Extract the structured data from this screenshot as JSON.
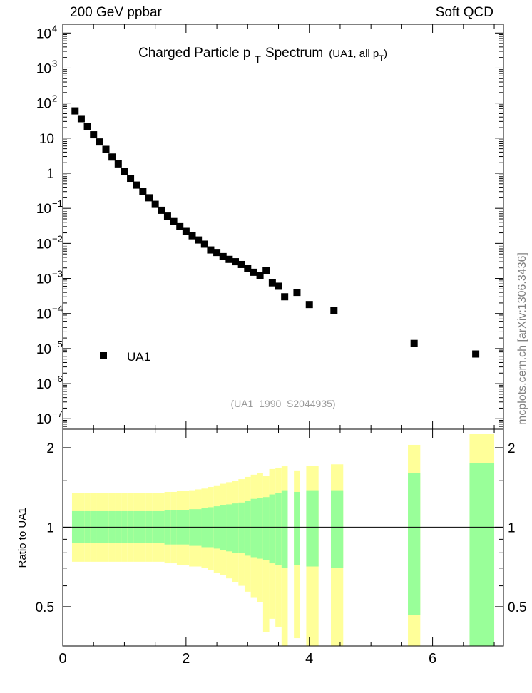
{
  "header": {
    "left": "200 GeV ppbar",
    "right": "Soft QCD",
    "side_credit": "mcplots.cern.ch [arXiv:1306.3436]"
  },
  "chart_data": [
    {
      "type": "scatter",
      "panel": "main",
      "title": "Charged Particle p",
      "title_sub": "T",
      "title_after": "Spectrum",
      "title_note": "(UA1, all p",
      "title_note_sub": "T",
      "title_note_close": ")",
      "analysis_id": "(UA1_1990_S2044935)",
      "yscale": "log",
      "xlim": [
        0,
        7.15
      ],
      "ylim_log10": [
        -7.3,
        4.25
      ],
      "yticks": [
        {
          "exp": 4,
          "label": "10",
          "sup": "4"
        },
        {
          "exp": 3,
          "label": "10",
          "sup": "3"
        },
        {
          "exp": 2,
          "label": "10",
          "sup": "2"
        },
        {
          "exp": 1,
          "label": "10",
          "sup": ""
        },
        {
          "exp": 0,
          "label": "1",
          "sup": ""
        },
        {
          "exp": -1,
          "label": "10",
          "sup": "−1"
        },
        {
          "exp": -2,
          "label": "10",
          "sup": "−2"
        },
        {
          "exp": -3,
          "label": "10",
          "sup": "−3"
        },
        {
          "exp": -4,
          "label": "10",
          "sup": "−4"
        },
        {
          "exp": -5,
          "label": "10",
          "sup": "−5"
        },
        {
          "exp": -6,
          "label": "10",
          "sup": "−6"
        },
        {
          "exp": -7,
          "label": "10",
          "sup": "−7"
        }
      ],
      "legend_position": "lower-left",
      "series": [
        {
          "name": "UA1",
          "color": "#000000",
          "marker": "square",
          "x": [
            0.2,
            0.3,
            0.4,
            0.5,
            0.6,
            0.7,
            0.8,
            0.9,
            1.0,
            1.1,
            1.2,
            1.3,
            1.4,
            1.5,
            1.6,
            1.7,
            1.8,
            1.9,
            2.0,
            2.1,
            2.2,
            2.3,
            2.4,
            2.5,
            2.6,
            2.7,
            2.8,
            2.9,
            3.0,
            3.1,
            3.2,
            3.3,
            3.4,
            3.5,
            3.6,
            3.8,
            4.0,
            4.4,
            5.7,
            6.7
          ],
          "y": [
            60,
            36,
            21,
            12.5,
            7.8,
            4.8,
            2.9,
            1.85,
            1.15,
            0.72,
            0.46,
            0.3,
            0.2,
            0.13,
            0.088,
            0.06,
            0.042,
            0.03,
            0.022,
            0.0165,
            0.0125,
            0.0095,
            0.0065,
            0.0055,
            0.0042,
            0.0035,
            0.003,
            0.0025,
            0.0019,
            0.0015,
            0.0012,
            0.0017,
            0.00075,
            0.0006,
            0.0003,
            0.0004,
            0.00018,
            0.00012,
            1.4e-05,
            7e-06
          ]
        }
      ]
    },
    {
      "type": "area",
      "panel": "ratio",
      "ylabel": "Ratio to UA1",
      "yscale": "log",
      "xlim": [
        0,
        7.15
      ],
      "ylim": [
        0.355,
        2.35
      ],
      "yticks": [
        0.5,
        1,
        2
      ],
      "ytick_labels": [
        "0.5",
        "1",
        "2"
      ],
      "xticks": [
        0,
        2,
        4,
        6
      ],
      "xtick_labels": [
        "0",
        "2",
        "4",
        "6"
      ],
      "reference_line": 1,
      "band_colors": {
        "inner": "#99ff99",
        "outer": "#ffff99"
      },
      "bins": [
        {
          "x0": 0.15,
          "x1": 0.25,
          "inner": [
            0.87,
            1.15
          ],
          "outer": [
            0.74,
            1.35
          ]
        },
        {
          "x0": 0.25,
          "x1": 0.35,
          "inner": [
            0.87,
            1.15
          ],
          "outer": [
            0.74,
            1.35
          ]
        },
        {
          "x0": 0.35,
          "x1": 0.45,
          "inner": [
            0.87,
            1.15
          ],
          "outer": [
            0.74,
            1.35
          ]
        },
        {
          "x0": 0.45,
          "x1": 0.55,
          "inner": [
            0.87,
            1.15
          ],
          "outer": [
            0.74,
            1.35
          ]
        },
        {
          "x0": 0.55,
          "x1": 0.65,
          "inner": [
            0.87,
            1.15
          ],
          "outer": [
            0.74,
            1.35
          ]
        },
        {
          "x0": 0.65,
          "x1": 0.75,
          "inner": [
            0.87,
            1.15
          ],
          "outer": [
            0.74,
            1.35
          ]
        },
        {
          "x0": 0.75,
          "x1": 0.85,
          "inner": [
            0.87,
            1.15
          ],
          "outer": [
            0.74,
            1.35
          ]
        },
        {
          "x0": 0.85,
          "x1": 0.95,
          "inner": [
            0.87,
            1.15
          ],
          "outer": [
            0.74,
            1.35
          ]
        },
        {
          "x0": 0.95,
          "x1": 1.05,
          "inner": [
            0.87,
            1.15
          ],
          "outer": [
            0.74,
            1.35
          ]
        },
        {
          "x0": 1.05,
          "x1": 1.15,
          "inner": [
            0.87,
            1.15
          ],
          "outer": [
            0.74,
            1.35
          ]
        },
        {
          "x0": 1.15,
          "x1": 1.25,
          "inner": [
            0.87,
            1.15
          ],
          "outer": [
            0.74,
            1.35
          ]
        },
        {
          "x0": 1.25,
          "x1": 1.35,
          "inner": [
            0.87,
            1.15
          ],
          "outer": [
            0.74,
            1.35
          ]
        },
        {
          "x0": 1.35,
          "x1": 1.45,
          "inner": [
            0.87,
            1.15
          ],
          "outer": [
            0.74,
            1.35
          ]
        },
        {
          "x0": 1.45,
          "x1": 1.55,
          "inner": [
            0.87,
            1.15
          ],
          "outer": [
            0.74,
            1.35
          ]
        },
        {
          "x0": 1.55,
          "x1": 1.65,
          "inner": [
            0.87,
            1.15
          ],
          "outer": [
            0.74,
            1.35
          ]
        },
        {
          "x0": 1.65,
          "x1": 1.75,
          "inner": [
            0.86,
            1.16
          ],
          "outer": [
            0.73,
            1.36
          ]
        },
        {
          "x0": 1.75,
          "x1": 1.85,
          "inner": [
            0.86,
            1.16
          ],
          "outer": [
            0.73,
            1.36
          ]
        },
        {
          "x0": 1.85,
          "x1": 1.95,
          "inner": [
            0.86,
            1.16
          ],
          "outer": [
            0.72,
            1.37
          ]
        },
        {
          "x0": 1.95,
          "x1": 2.05,
          "inner": [
            0.86,
            1.16
          ],
          "outer": [
            0.72,
            1.37
          ]
        },
        {
          "x0": 2.05,
          "x1": 2.15,
          "inner": [
            0.85,
            1.17
          ],
          "outer": [
            0.71,
            1.38
          ]
        },
        {
          "x0": 2.15,
          "x1": 2.25,
          "inner": [
            0.85,
            1.17
          ],
          "outer": [
            0.71,
            1.39
          ]
        },
        {
          "x0": 2.25,
          "x1": 2.35,
          "inner": [
            0.84,
            1.18
          ],
          "outer": [
            0.7,
            1.4
          ]
        },
        {
          "x0": 2.35,
          "x1": 2.45,
          "inner": [
            0.84,
            1.19
          ],
          "outer": [
            0.69,
            1.42
          ]
        },
        {
          "x0": 2.45,
          "x1": 2.55,
          "inner": [
            0.83,
            1.2
          ],
          "outer": [
            0.67,
            1.44
          ]
        },
        {
          "x0": 2.55,
          "x1": 2.65,
          "inner": [
            0.82,
            1.21
          ],
          "outer": [
            0.66,
            1.46
          ]
        },
        {
          "x0": 2.65,
          "x1": 2.75,
          "inner": [
            0.81,
            1.22
          ],
          "outer": [
            0.64,
            1.48
          ]
        },
        {
          "x0": 2.75,
          "x1": 2.85,
          "inner": [
            0.8,
            1.23
          ],
          "outer": [
            0.62,
            1.5
          ]
        },
        {
          "x0": 2.85,
          "x1": 2.95,
          "inner": [
            0.8,
            1.24
          ],
          "outer": [
            0.6,
            1.52
          ]
        },
        {
          "x0": 2.95,
          "x1": 3.05,
          "inner": [
            0.78,
            1.26
          ],
          "outer": [
            0.57,
            1.55
          ]
        },
        {
          "x0": 3.05,
          "x1": 3.15,
          "inner": [
            0.77,
            1.28
          ],
          "outer": [
            0.54,
            1.58
          ]
        },
        {
          "x0": 3.15,
          "x1": 3.25,
          "inner": [
            0.76,
            1.29
          ],
          "outer": [
            0.52,
            1.6
          ]
        },
        {
          "x0": 3.25,
          "x1": 3.35,
          "inner": [
            0.75,
            1.3
          ],
          "outer": [
            0.4,
            1.56
          ]
        },
        {
          "x0": 3.35,
          "x1": 3.45,
          "inner": [
            0.73,
            1.33
          ],
          "outer": [
            0.45,
            1.66
          ]
        },
        {
          "x0": 3.45,
          "x1": 3.55,
          "inner": [
            0.72,
            1.35
          ],
          "outer": [
            0.42,
            1.68
          ]
        },
        {
          "x0": 3.55,
          "x1": 3.65,
          "inner": [
            0.7,
            1.38
          ],
          "outer": [
            0.355,
            1.7
          ]
        },
        {
          "x0": 3.75,
          "x1": 3.85,
          "inner": [
            0.72,
            1.36
          ],
          "outer": [
            0.38,
            1.64
          ]
        },
        {
          "x0": 3.95,
          "x1": 4.15,
          "inner": [
            0.71,
            1.38
          ],
          "outer": [
            0.355,
            1.71
          ]
        },
        {
          "x0": 4.35,
          "x1": 4.55,
          "inner": [
            0.7,
            1.38
          ],
          "outer": [
            0.355,
            1.73
          ]
        },
        {
          "x0": 5.6,
          "x1": 5.8,
          "inner": [
            0.465,
            1.6
          ],
          "outer": [
            0.355,
            2.05
          ]
        },
        {
          "x0": 6.6,
          "x1": 7.0,
          "inner": [
            0.355,
            1.75
          ],
          "outer": [
            0.355,
            2.25
          ]
        }
      ]
    }
  ]
}
